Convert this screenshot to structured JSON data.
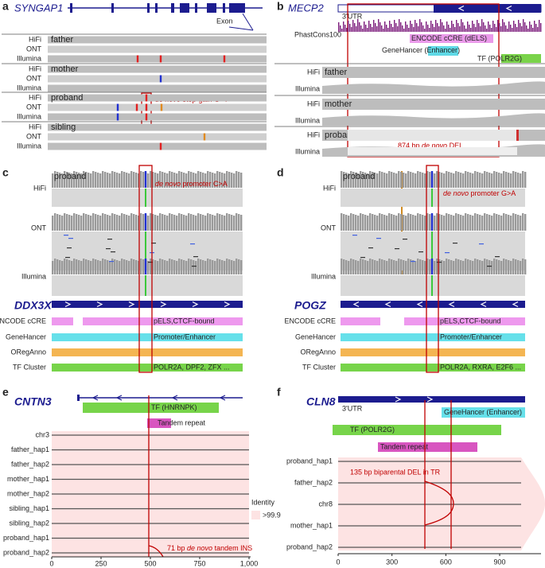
{
  "panels": {
    "a": {
      "label": "a",
      "gene": "SYNGAP1",
      "exon": "Exon",
      "track_types": [
        "HiFi",
        "ONT",
        "Illumina"
      ],
      "samples": [
        "father",
        "mother",
        "proband",
        "sibling"
      ],
      "note": {
        "italic": "de novo",
        "after": " stop-gain G>T"
      }
    },
    "b": {
      "label": "b",
      "gene": "MECP2",
      "utr": "3'UTR",
      "phastcons": "PhastCons100",
      "encode": "ENCODE cCRE (dELS)",
      "genehancer": {
        "before": "GeneHancer (",
        "highlight": "Enhancer",
        "after": ")"
      },
      "tf": "TF (POLR2G)",
      "track_types": [
        "HiFi",
        "Illumina"
      ],
      "samples": [
        "father",
        "mother",
        "proband"
      ],
      "note": {
        "before": "874 bp ",
        "italic": "de novo",
        "after": " DEL"
      }
    },
    "c": {
      "label": "c",
      "sample": "proband",
      "track_types": [
        "HiFi",
        "ONT",
        "Illumina"
      ],
      "note": {
        "italic": "de novo",
        "after": " promoter C>A"
      },
      "gene": "DDX3X",
      "annotations": [
        {
          "name": "ENCODE cCRE",
          "label": "pELS,CTCF-bound"
        },
        {
          "name": "GeneHancer",
          "label": "Promoter/Enhancer"
        },
        {
          "name": "ORegAnno"
        },
        {
          "name": "TF Cluster",
          "label": "POLR2A, DPF2, ZFX ..."
        }
      ]
    },
    "d": {
      "label": "d",
      "sample": "proband",
      "track_types": [
        "HiFi",
        "ONT",
        "Illumina"
      ],
      "note": {
        "italic": "de novo",
        "after": " promoter G>A"
      },
      "gene": "POGZ",
      "annotations": [
        {
          "name": "ENCODE cCRE",
          "label": "pELS,CTCF-bound"
        },
        {
          "name": "GeneHancer",
          "label": "Promoter/Enhancer"
        },
        {
          "name": "ORegAnno"
        },
        {
          "name": "TF Cluster",
          "label": "POLR2A, RXRA, E2F6 ..."
        }
      ]
    },
    "e": {
      "label": "e",
      "gene": "CNTN3",
      "tf": "TF (HNRNPK)",
      "repeat": "Tandem repeat",
      "haplotypes": [
        "chr3",
        "father_hap1",
        "father_hap2",
        "mother_hap1",
        "mother_hap2",
        "sibling_hap1",
        "sibling_hap2",
        "proband_hap1",
        "proband_hap2"
      ],
      "legend": {
        "title": "Identity",
        "label": ">99.9"
      },
      "note": {
        "before": "71 bp ",
        "italic": "de novo",
        "after": " tandem INS"
      },
      "xticks": [
        0,
        250,
        500,
        750,
        {
          "value": 1000,
          "label": "1,000"
        }
      ]
    },
    "f": {
      "label": "f",
      "gene": "CLN8",
      "utr": "3'UTR",
      "genehancer": "GeneHancer (Enhancer)",
      "tf": "TF (POLR2G)",
      "repeat": "Tandem repeat",
      "haplotypes": [
        "proband_hap1",
        "father_hap2",
        "chr8",
        "mother_hap1",
        "proband_hap2"
      ],
      "note": "135 bp biparental DEL in TR",
      "xticks": [
        0,
        300,
        600,
        900
      ]
    }
  }
}
